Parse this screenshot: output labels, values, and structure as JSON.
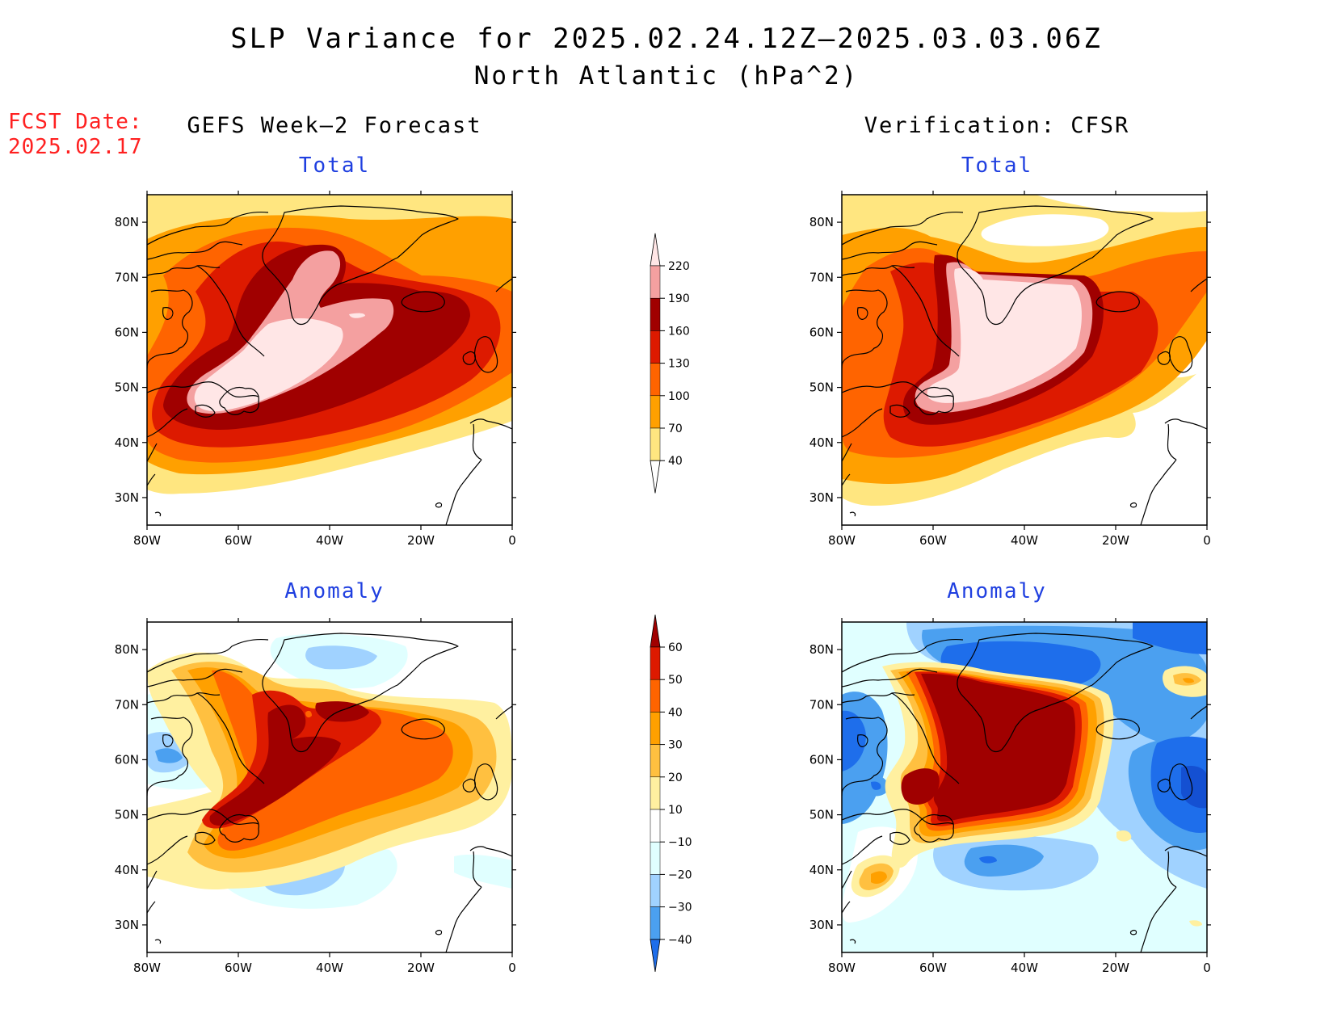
{
  "title": {
    "line1": "SLP Variance for 2025.02.24.12Z—2025.03.03.06Z",
    "line2": "North Atlantic (hPa^2)"
  },
  "fcst": {
    "label": "FCST Date:",
    "date": "2025.02.17"
  },
  "columns": {
    "left": "GEFS Week—2 Forecast",
    "right": "Verification: CFSR"
  },
  "panels": [
    {
      "id": "gefs-total",
      "subtitle": "Total"
    },
    {
      "id": "cfsr-total",
      "subtitle": "Total"
    },
    {
      "id": "gefs-anomaly",
      "subtitle": "Anomaly"
    },
    {
      "id": "cfsr-anomaly",
      "subtitle": "Anomaly"
    }
  ],
  "axes": {
    "lon_labels": [
      "80W",
      "60W",
      "40W",
      "20W",
      "0"
    ],
    "lat_labels": [
      "80N",
      "70N",
      "60N",
      "50N",
      "40N",
      "30N"
    ],
    "lon_range": [
      -80,
      0
    ],
    "lat_range": [
      25,
      85
    ]
  },
  "colorbars": {
    "total": {
      "levels": [
        "220",
        "190",
        "160",
        "130",
        "100",
        "70",
        "40"
      ],
      "colors": [
        "#ffe6e6",
        "#f4a0a0",
        "#a00000",
        "#dd1a00",
        "#ff6400",
        "#ffa000",
        "#ffe680",
        "#ffffff"
      ]
    },
    "anomaly": {
      "levels": [
        "60",
        "50",
        "40",
        "30",
        "20",
        "10",
        "−10",
        "−20",
        "−30",
        "−40"
      ],
      "colors": [
        "#a00000",
        "#dd1a00",
        "#ff6400",
        "#ffa000",
        "#ffc040",
        "#fff0a0",
        "#ffffff",
        "#e0ffff",
        "#a0d2ff",
        "#4ba0f0",
        "#1e6eeb",
        "#1450d2"
      ]
    }
  }
}
